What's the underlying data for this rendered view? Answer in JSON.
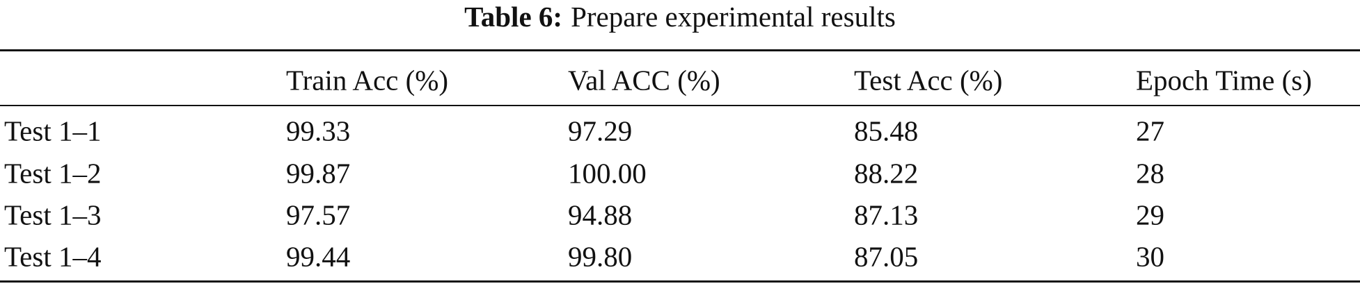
{
  "table": {
    "label": "Table 6:",
    "caption": "Prepare experimental results",
    "columns": [
      "",
      "Train Acc (%)",
      "Val ACC (%)",
      "Test Acc (%)",
      "Epoch Time (s)"
    ],
    "rows": [
      [
        "Test 1–1",
        "99.33",
        "97.29",
        "85.48",
        "27"
      ],
      [
        "Test 1–2",
        "99.87",
        "100.00",
        "88.22",
        "28"
      ],
      [
        "Test 1–3",
        "97.57",
        "94.88",
        "87.13",
        "29"
      ],
      [
        "Test 1–4",
        "99.44",
        "99.80",
        "87.05",
        "30"
      ]
    ]
  }
}
